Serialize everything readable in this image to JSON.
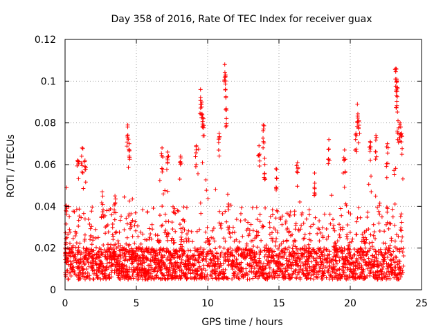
{
  "chart_data": {
    "type": "scatter",
    "title": "Day 358 of 2016, Rate Of TEC Index for receiver guax",
    "xlabel": "GPS time / hours",
    "ylabel": "ROTI / TECUs",
    "xlim": [
      0,
      25
    ],
    "ylim": [
      0,
      0.12
    ],
    "grid": true,
    "marker": "+",
    "marker_color": "#ff0000",
    "x_ticks": [
      0,
      5,
      10,
      15,
      20,
      25
    ],
    "x_tick_labels": [
      "0",
      "5",
      "10",
      "15",
      "20",
      "25"
    ],
    "y_ticks": [
      0,
      0.02,
      0.04,
      0.06,
      0.08,
      0.1,
      0.12
    ],
    "y_tick_labels": [
      "0",
      "0.02",
      "0.04",
      "0.06",
      "0.08",
      "0.1",
      "0.12"
    ],
    "series": [
      {
        "name": "ROTI",
        "x_range": [
          0,
          23.75
        ],
        "baseline_band": [
          0.005,
          0.02
        ],
        "peaks": [
          {
            "x": 0.1,
            "y": 0.049
          },
          {
            "x": 0.9,
            "y": 0.062
          },
          {
            "x": 1.2,
            "y": 0.068
          },
          {
            "x": 1.4,
            "y": 0.062
          },
          {
            "x": 2.6,
            "y": 0.047
          },
          {
            "x": 3.5,
            "y": 0.045
          },
          {
            "x": 4.4,
            "y": 0.079
          },
          {
            "x": 4.5,
            "y": 0.07
          },
          {
            "x": 6.8,
            "y": 0.068
          },
          {
            "x": 7.2,
            "y": 0.066
          },
          {
            "x": 8.1,
            "y": 0.064
          },
          {
            "x": 9.2,
            "y": 0.069
          },
          {
            "x": 9.5,
            "y": 0.096
          },
          {
            "x": 9.6,
            "y": 0.09
          },
          {
            "x": 9.7,
            "y": 0.082
          },
          {
            "x": 10.8,
            "y": 0.075
          },
          {
            "x": 11.2,
            "y": 0.108
          },
          {
            "x": 11.25,
            "y": 0.103
          },
          {
            "x": 11.3,
            "y": 0.087
          },
          {
            "x": 13.6,
            "y": 0.069
          },
          {
            "x": 13.9,
            "y": 0.079
          },
          {
            "x": 14.0,
            "y": 0.063
          },
          {
            "x": 14.8,
            "y": 0.058
          },
          {
            "x": 16.3,
            "y": 0.061
          },
          {
            "x": 17.5,
            "y": 0.056
          },
          {
            "x": 18.5,
            "y": 0.072
          },
          {
            "x": 19.6,
            "y": 0.067
          },
          {
            "x": 20.4,
            "y": 0.075
          },
          {
            "x": 20.5,
            "y": 0.089
          },
          {
            "x": 20.6,
            "y": 0.081
          },
          {
            "x": 21.4,
            "y": 0.071
          },
          {
            "x": 21.8,
            "y": 0.074
          },
          {
            "x": 22.6,
            "y": 0.07
          },
          {
            "x": 23.2,
            "y": 0.106
          },
          {
            "x": 23.25,
            "y": 0.101
          },
          {
            "x": 23.3,
            "y": 0.097
          },
          {
            "x": 23.35,
            "y": 0.081
          },
          {
            "x": 23.5,
            "y": 0.08
          },
          {
            "x": 23.6,
            "y": 0.075
          }
        ]
      }
    ]
  }
}
